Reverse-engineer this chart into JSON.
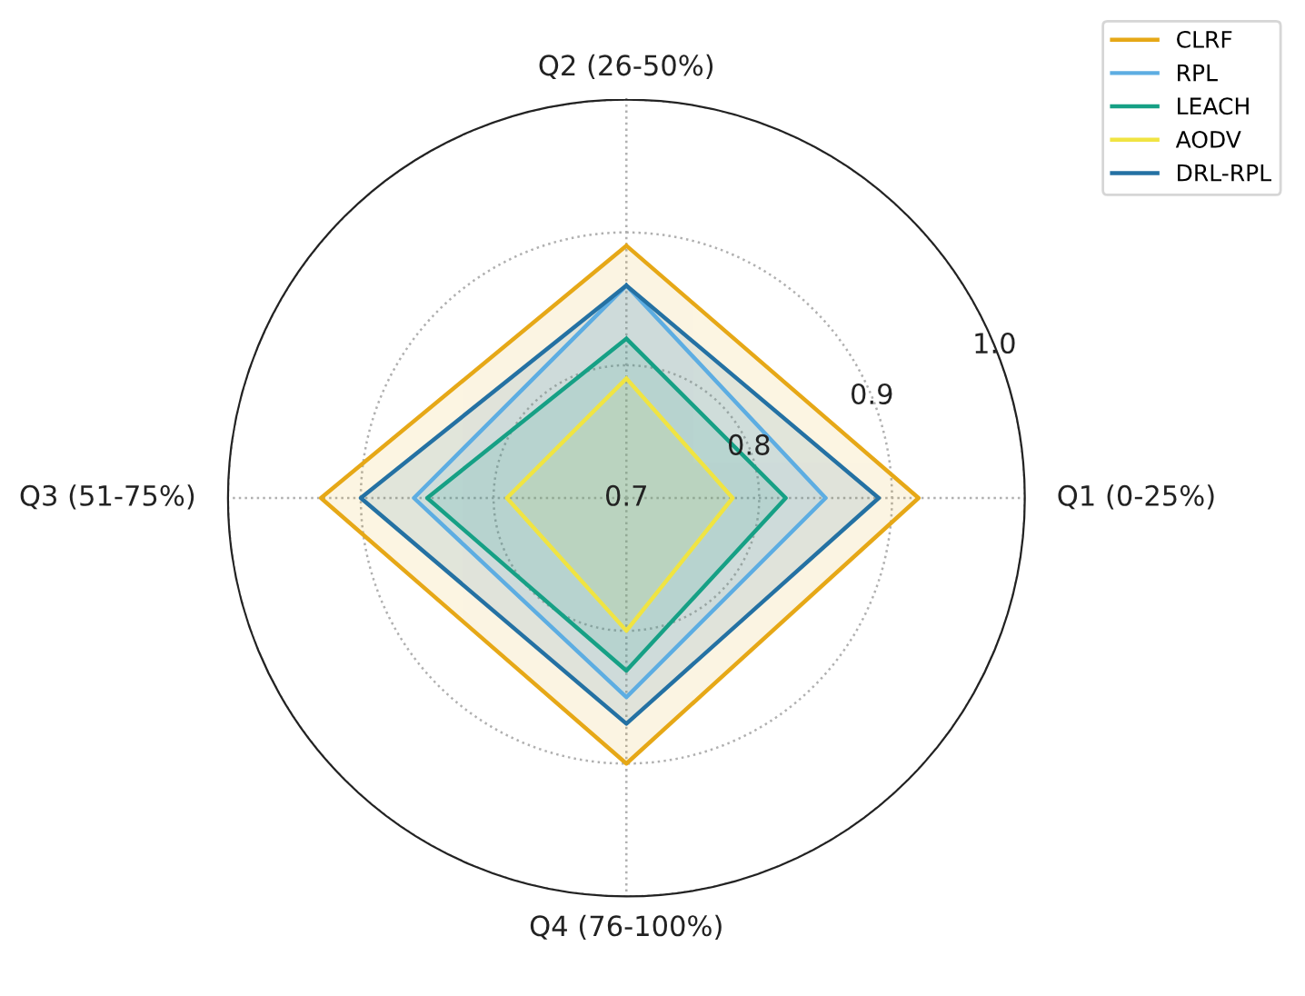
{
  "chart_data": {
    "type": "radar",
    "categories": [
      "Q2 (26-50%)",
      "Q1 (0-25%)",
      "Q4 (76-100%)",
      "Q3 (51-75%)"
    ],
    "ylim": [
      0.7,
      1.0
    ],
    "yticks": [
      0.7,
      0.8,
      0.9,
      {
        "value": 1.0,
        "label": "1.0"
      }
    ],
    "grid": true,
    "legend": "top right",
    "marker": "none",
    "line_style": "solid",
    "series": [
      {
        "name": "CLRF",
        "color": "#e6a817",
        "values": [
          0.89,
          0.92,
          0.9,
          0.93
        ]
      },
      {
        "name": "RPL",
        "color": "#5dade2",
        "values": [
          0.86,
          0.85,
          0.85,
          0.86
        ]
      },
      {
        "name": "LEACH",
        "color": "#16a085",
        "values": [
          0.82,
          0.82,
          0.83,
          0.85
        ]
      },
      {
        "name": "AODV",
        "color": "#f0e442",
        "values": [
          0.79,
          0.78,
          0.8,
          0.79
        ]
      },
      {
        "name": "DRL-RPL",
        "color": "#2471a3",
        "values": [
          0.86,
          0.89,
          0.87,
          0.9
        ]
      }
    ]
  }
}
